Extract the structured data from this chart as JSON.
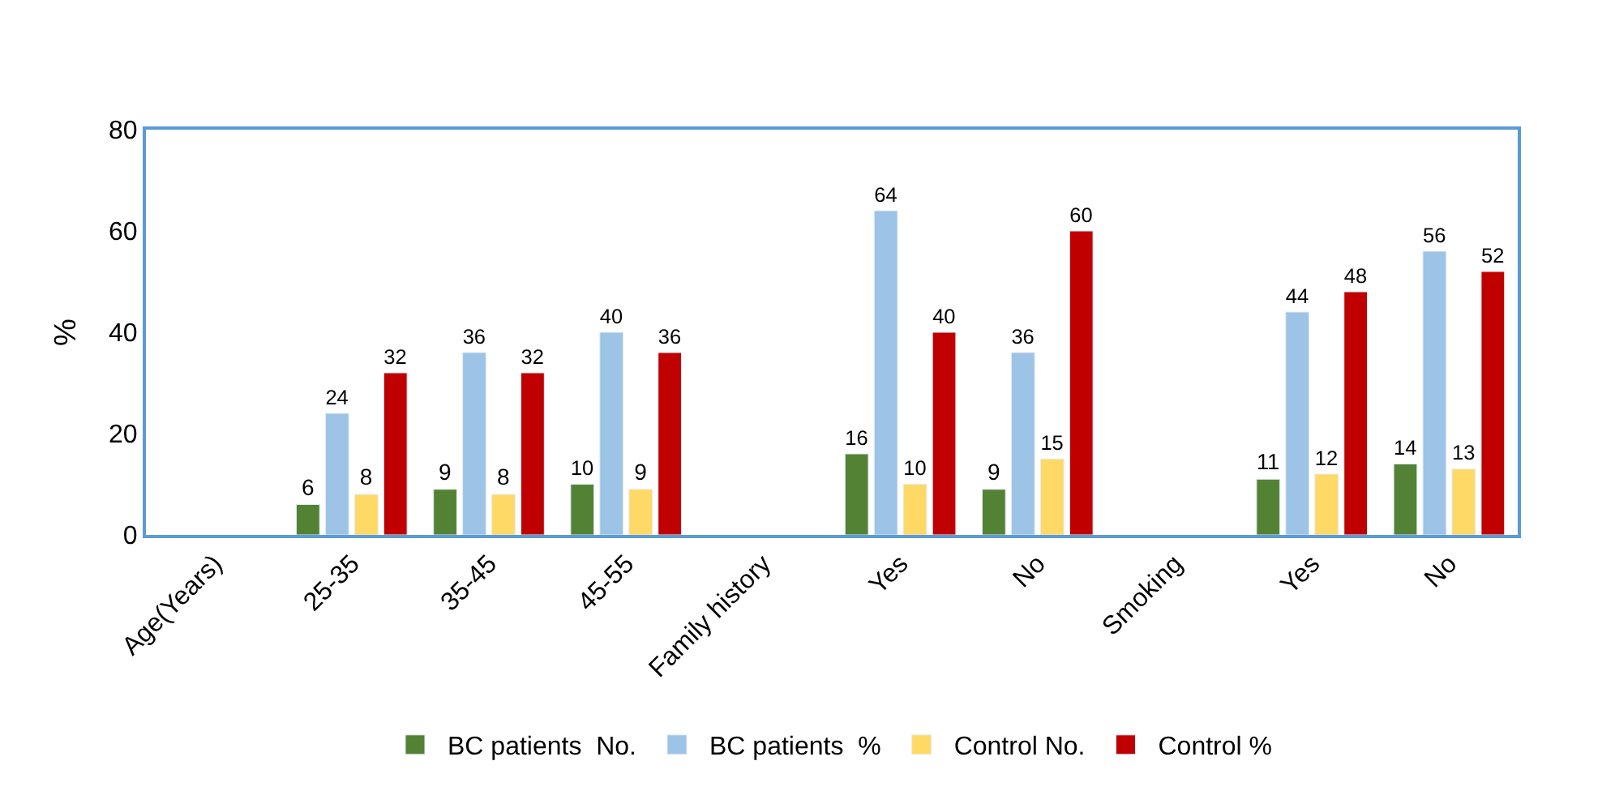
{
  "chart_data": {
    "type": "bar",
    "ylabel": "%",
    "categories": [
      "Age(Years)",
      "25-35",
      "35-45",
      "45-55",
      "Family history",
      "Yes",
      "No",
      "Smoking",
      "Yes",
      "No"
    ],
    "series": [
      {
        "name": "BC patients  No.",
        "color": "#548235",
        "values": [
          null,
          6,
          9,
          10,
          null,
          16,
          9,
          null,
          11,
          14
        ]
      },
      {
        "name": "BC patients  %",
        "color": "#9dc3e6",
        "values": [
          null,
          24,
          36,
          40,
          null,
          64,
          36,
          null,
          44,
          56
        ]
      },
      {
        "name": "Control No.",
        "color": "#ffd966",
        "values": [
          null,
          8,
          8,
          9,
          null,
          10,
          15,
          null,
          12,
          13
        ]
      },
      {
        "name": "Control %",
        "color": "#c00000",
        "values": [
          null,
          32,
          32,
          36,
          null,
          40,
          60,
          null,
          48,
          52
        ]
      }
    ],
    "ylim": [
      0,
      80
    ],
    "yticks": [
      0,
      20,
      40,
      60,
      80
    ],
    "legend": "bottom",
    "data_labels": true
  }
}
